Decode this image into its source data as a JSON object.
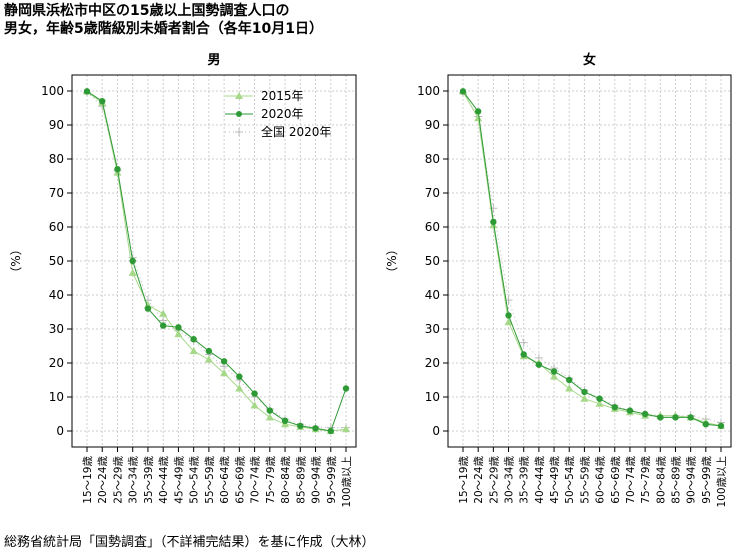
{
  "title_lines": [
    "静岡県浜松市中区の15歳以上国勢調査人口の",
    "男女，年齢5歳階級別未婚者割合（各年10月1日）"
  ],
  "source": "総務省統計局「国勢調査」（不詳補完結果）を基に作成（大林）",
  "colors": {
    "s2015": "#a6d88a",
    "s2020": "#2e9a35",
    "national": "#bbbbbb",
    "grid": "#cccccc"
  },
  "chart_data": [
    {
      "type": "line",
      "title": "男",
      "ylabel": "（%）",
      "ylim": [
        0,
        100
      ],
      "yticks": [
        0,
        10,
        20,
        30,
        40,
        50,
        60,
        70,
        80,
        90,
        100
      ],
      "grid": true,
      "legend": {
        "placement": "top-right",
        "entries": [
          "2015年",
          "2020年",
          "全国 2020年"
        ]
      },
      "categories": [
        "15～19歳",
        "20～24歳",
        "25～29歳",
        "30～34歳",
        "35～39歳",
        "40～44歳",
        "45～49歳",
        "50～54歳",
        "55～59歳",
        "60～64歳",
        "65～69歳",
        "70～74歳",
        "75～79歳",
        "80～84歳",
        "85～89歳",
        "90～94歳",
        "95～99歳",
        "100歳以上"
      ],
      "series": [
        {
          "name": "2015年",
          "values": [
            99.8,
            96.5,
            76.0,
            46.5,
            37.0,
            34.5,
            28.5,
            23.5,
            21.0,
            17.0,
            12.5,
            7.5,
            4.0,
            2.0,
            1.2,
            0.5,
            0.0,
            0.5
          ]
        },
        {
          "name": "2020年",
          "values": [
            99.9,
            97.0,
            77.0,
            50.0,
            36.0,
            31.0,
            30.5,
            27.0,
            23.5,
            20.5,
            16.0,
            11.0,
            6.0,
            3.0,
            1.5,
            0.8,
            0.0,
            12.5
          ]
        },
        {
          "name": "全国 2020年",
          "values": [
            99.6,
            95.5,
            76.5,
            51.0,
            38.5,
            32.5,
            29.5,
            26.5,
            22.5,
            19.0,
            15.0,
            10.0,
            6.5,
            3.5,
            2.0,
            1.2,
            1.0,
            1.0
          ]
        }
      ]
    },
    {
      "type": "line",
      "title": "女",
      "ylabel": "（%）",
      "ylim": [
        0,
        100
      ],
      "yticks": [
        0,
        10,
        20,
        30,
        40,
        50,
        60,
        70,
        80,
        90,
        100
      ],
      "grid": true,
      "categories": [
        "15～19歳",
        "20～24歳",
        "25～29歳",
        "30～34歳",
        "35～39歳",
        "40～44歳",
        "45～49歳",
        "50～54歳",
        "55～59歳",
        "60～64歳",
        "65～69歳",
        "70～74歳",
        "75～79歳",
        "80～84歳",
        "85～89歳",
        "90～94歳",
        "95～99歳",
        "100歳以上"
      ],
      "series": [
        {
          "name": "2015年",
          "values": [
            99.8,
            92.0,
            60.5,
            32.0,
            22.0,
            20.0,
            16.0,
            12.5,
            9.5,
            8.0,
            6.5,
            5.5,
            4.5,
            4.5,
            4.5,
            4.0,
            2.5,
            1.5
          ]
        },
        {
          "name": "2020年",
          "values": [
            99.9,
            94.0,
            61.5,
            34.0,
            22.5,
            19.5,
            17.5,
            15.0,
            11.5,
            9.5,
            7.0,
            6.0,
            5.0,
            4.0,
            4.0,
            4.0,
            2.0,
            1.5
          ]
        },
        {
          "name": "全国 2020年",
          "values": [
            99.5,
            92.5,
            65.5,
            38.5,
            26.0,
            21.5,
            18.5,
            15.5,
            12.0,
            9.5,
            7.5,
            6.0,
            5.0,
            4.5,
            4.5,
            4.5,
            3.5,
            2.5
          ]
        }
      ]
    }
  ]
}
